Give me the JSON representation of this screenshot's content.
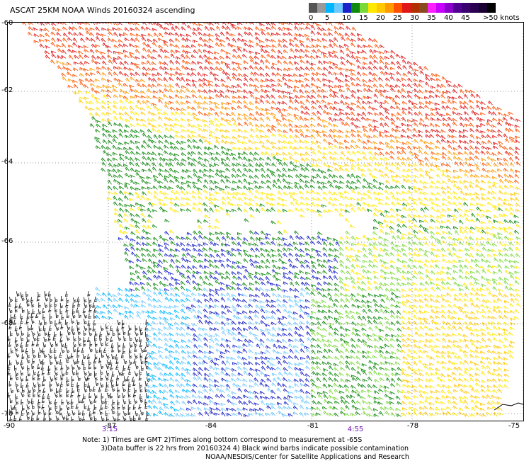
{
  "title": "ASCAT 25KM NOAA Winds 20160324 ascending",
  "speed_scale": {
    "labels": [
      "0",
      "5",
      "10",
      "15",
      "20",
      "25",
      "30",
      "35",
      "40",
      "45",
      ">50 knots"
    ],
    "colors": [
      "#555555",
      "#999999",
      "#00b7ff",
      "#6ec9ff",
      "#1a22c8",
      "#0f8a0f",
      "#7ad83a",
      "#ffe800",
      "#ffc800",
      "#ff9a00",
      "#ff5000",
      "#e01818",
      "#b03000",
      "#8a4a20",
      "#ff20ff",
      "#c800ff",
      "#8a00c8",
      "#500090",
      "#3a0070",
      "#2a0050",
      "#1a0030",
      "#000000"
    ]
  },
  "map": {
    "lat_labels": [
      "-60",
      "-62",
      "-64",
      "-66",
      "-68",
      "-70"
    ],
    "lon_labels": [
      "-90",
      "-87",
      "-84",
      "-81",
      "-78",
      "-75"
    ],
    "time_labels": [
      "3:15",
      "4:55"
    ]
  },
  "notes": {
    "line1": "Note: 1) Times are GMT 2)Times along bottom correspond to measurement at -65S",
    "line2": "3)Data buffer is 22 hrs from 20160324 4) Black wind barbs indicate possible contamination",
    "line3": "NOAA/NESDIS/Center for Satellite Applications and Research"
  }
}
